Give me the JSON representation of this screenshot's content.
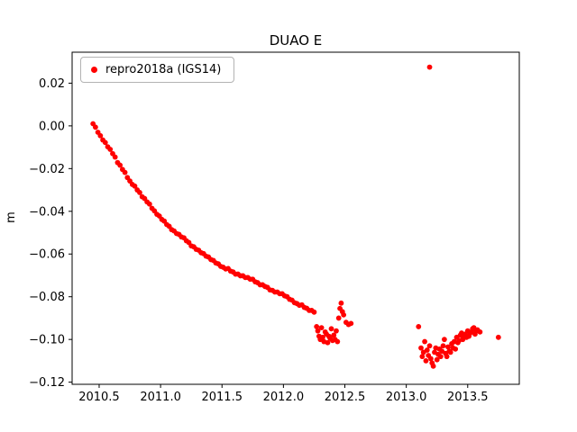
{
  "figure": {
    "title": "DUAO E",
    "ylabel": "m"
  },
  "legend": {
    "label": "repro2018a (IGS14)",
    "marker_color": "#ff0000"
  },
  "chart_data": {
    "type": "scatter",
    "title": "DUAO E",
    "xlabel": "",
    "ylabel": "m",
    "xlim": [
      2010.28,
      2013.92
    ],
    "ylim": [
      -0.121,
      0.0345
    ],
    "grid": false,
    "legend_position": "upper left",
    "xticks": [
      2010.5,
      2011.0,
      2011.5,
      2012.0,
      2012.5,
      2013.0,
      2013.5
    ],
    "xtick_labels": [
      "2010.5",
      "2011.0",
      "2011.5",
      "2012.0",
      "2012.5",
      "2013.0",
      "2013.5"
    ],
    "yticks": [
      0.02,
      0.0,
      -0.02,
      -0.04,
      -0.06,
      -0.08,
      -0.1,
      -0.12
    ],
    "ytick_labels": [
      "0.02",
      "0.00",
      "−0.02",
      "−0.04",
      "−0.06",
      "−0.08",
      "−0.10",
      "−0.12"
    ],
    "series": [
      {
        "name": "repro2018a (IGS14)",
        "color": "#ff0000",
        "marker": "circle",
        "points": [
          [
            2010.45,
            0.001
          ],
          [
            2010.47,
            -0.0006
          ],
          [
            2010.49,
            -0.003
          ],
          [
            2010.51,
            -0.0046
          ],
          [
            2010.53,
            -0.0066
          ],
          [
            2010.55,
            -0.0078
          ],
          [
            2010.57,
            -0.0098
          ],
          [
            2010.59,
            -0.011
          ],
          [
            2010.61,
            -0.013
          ],
          [
            2010.63,
            -0.0146
          ],
          [
            2010.65,
            -0.0172
          ],
          [
            2010.67,
            -0.0184
          ],
          [
            2010.69,
            -0.0204
          ],
          [
            2010.71,
            -0.0218
          ],
          [
            2010.73,
            -0.0242
          ],
          [
            2010.75,
            -0.0258
          ],
          [
            2010.77,
            -0.0274
          ],
          [
            2010.79,
            -0.0282
          ],
          [
            2010.81,
            -0.03
          ],
          [
            2010.83,
            -0.0312
          ],
          [
            2010.85,
            -0.0332
          ],
          [
            2010.87,
            -0.034
          ],
          [
            2010.89,
            -0.0356
          ],
          [
            2010.91,
            -0.0366
          ],
          [
            2010.93,
            -0.0386
          ],
          [
            2010.95,
            -0.0398
          ],
          [
            2010.97,
            -0.0414
          ],
          [
            2010.99,
            -0.0422
          ],
          [
            2011.01,
            -0.0438
          ],
          [
            2011.03,
            -0.0446
          ],
          [
            2011.05,
            -0.0462
          ],
          [
            2011.07,
            -0.047
          ],
          [
            2011.09,
            -0.0486
          ],
          [
            2011.11,
            -0.0492
          ],
          [
            2011.13,
            -0.0504
          ],
          [
            2011.15,
            -0.0508
          ],
          [
            2011.17,
            -0.052
          ],
          [
            2011.19,
            -0.0524
          ],
          [
            2011.21,
            -0.0538
          ],
          [
            2011.23,
            -0.0546
          ],
          [
            2011.25,
            -0.0562
          ],
          [
            2011.27,
            -0.0566
          ],
          [
            2011.29,
            -0.0578
          ],
          [
            2011.31,
            -0.0582
          ],
          [
            2011.33,
            -0.0594
          ],
          [
            2011.35,
            -0.0598
          ],
          [
            2011.37,
            -0.061
          ],
          [
            2011.39,
            -0.0614
          ],
          [
            2011.41,
            -0.0626
          ],
          [
            2011.43,
            -0.063
          ],
          [
            2011.45,
            -0.0642
          ],
          [
            2011.47,
            -0.0646
          ],
          [
            2011.49,
            -0.0658
          ],
          [
            2011.51,
            -0.0662
          ],
          [
            2011.53,
            -0.067
          ],
          [
            2011.55,
            -0.0668
          ],
          [
            2011.57,
            -0.068
          ],
          [
            2011.59,
            -0.0684
          ],
          [
            2011.61,
            -0.0694
          ],
          [
            2011.63,
            -0.0694
          ],
          [
            2011.65,
            -0.0702
          ],
          [
            2011.67,
            -0.0702
          ],
          [
            2011.69,
            -0.071
          ],
          [
            2011.71,
            -0.071
          ],
          [
            2011.73,
            -0.0718
          ],
          [
            2011.75,
            -0.0718
          ],
          [
            2011.77,
            -0.073
          ],
          [
            2011.79,
            -0.0734
          ],
          [
            2011.81,
            -0.0744
          ],
          [
            2011.83,
            -0.0744
          ],
          [
            2011.85,
            -0.0752
          ],
          [
            2011.87,
            -0.0756
          ],
          [
            2011.89,
            -0.0768
          ],
          [
            2011.91,
            -0.077
          ],
          [
            2011.93,
            -0.0778
          ],
          [
            2011.95,
            -0.0778
          ],
          [
            2011.97,
            -0.0786
          ],
          [
            2011.99,
            -0.0786
          ],
          [
            2012.01,
            -0.0796
          ],
          [
            2012.03,
            -0.08
          ],
          [
            2012.05,
            -0.0812
          ],
          [
            2012.07,
            -0.0816
          ],
          [
            2012.09,
            -0.0828
          ],
          [
            2012.11,
            -0.0832
          ],
          [
            2012.13,
            -0.084
          ],
          [
            2012.15,
            -0.0838
          ],
          [
            2012.17,
            -0.085
          ],
          [
            2012.19,
            -0.0854
          ],
          [
            2012.21,
            -0.0864
          ],
          [
            2012.23,
            -0.0864
          ],
          [
            2012.25,
            -0.0872
          ],
          [
            2012.27,
            -0.094
          ],
          [
            2012.28,
            -0.096
          ],
          [
            2012.29,
            -0.0985
          ],
          [
            2012.3,
            -0.1
          ],
          [
            2012.31,
            -0.0945
          ],
          [
            2012.32,
            -0.099
          ],
          [
            2012.33,
            -0.101
          ],
          [
            2012.34,
            -0.0965
          ],
          [
            2012.35,
            -0.0975
          ],
          [
            2012.36,
            -0.1015
          ],
          [
            2012.37,
            -0.0985
          ],
          [
            2012.38,
            -0.0995
          ],
          [
            2012.39,
            -0.095
          ],
          [
            2012.4,
            -0.1005
          ],
          [
            2012.41,
            -0.098
          ],
          [
            2012.42,
            -0.1
          ],
          [
            2012.43,
            -0.096
          ],
          [
            2012.44,
            -0.101
          ],
          [
            2012.45,
            -0.09
          ],
          [
            2012.46,
            -0.0855
          ],
          [
            2012.47,
            -0.083
          ],
          [
            2012.48,
            -0.087
          ],
          [
            2012.49,
            -0.0885
          ],
          [
            2012.51,
            -0.092
          ],
          [
            2012.53,
            -0.093
          ],
          [
            2012.55,
            -0.0925
          ],
          [
            2013.1,
            -0.094
          ],
          [
            2013.12,
            -0.104
          ],
          [
            2013.13,
            -0.108
          ],
          [
            2013.14,
            -0.106
          ],
          [
            2013.15,
            -0.101
          ],
          [
            2013.16,
            -0.11
          ],
          [
            2013.17,
            -0.105
          ],
          [
            2013.18,
            -0.1075
          ],
          [
            2013.19,
            0.0275
          ],
          [
            2013.19,
            -0.103
          ],
          [
            2013.2,
            -0.109
          ],
          [
            2013.21,
            -0.111
          ],
          [
            2013.22,
            -0.1125
          ],
          [
            2013.23,
            -0.106
          ],
          [
            2013.24,
            -0.104
          ],
          [
            2013.25,
            -0.1095
          ],
          [
            2013.26,
            -0.107
          ],
          [
            2013.27,
            -0.1045
          ],
          [
            2013.28,
            -0.108
          ],
          [
            2013.29,
            -0.1055
          ],
          [
            2013.3,
            -0.103
          ],
          [
            2013.31,
            -0.1
          ],
          [
            2013.32,
            -0.1065
          ],
          [
            2013.33,
            -0.108
          ],
          [
            2013.34,
            -0.1035
          ],
          [
            2013.35,
            -0.1055
          ],
          [
            2013.36,
            -0.106
          ],
          [
            2013.37,
            -0.102
          ],
          [
            2013.38,
            -0.104
          ],
          [
            2013.39,
            -0.101
          ],
          [
            2013.4,
            -0.1045
          ],
          [
            2013.41,
            -0.099
          ],
          [
            2013.42,
            -0.1015
          ],
          [
            2013.43,
            -0.1005
          ],
          [
            2013.44,
            -0.098
          ],
          [
            2013.45,
            -0.097
          ],
          [
            2013.46,
            -0.1
          ],
          [
            2013.47,
            -0.0985
          ],
          [
            2013.48,
            -0.0975
          ],
          [
            2013.49,
            -0.099
          ],
          [
            2013.5,
            -0.096
          ],
          [
            2013.51,
            -0.0985
          ],
          [
            2013.52,
            -0.097
          ],
          [
            2013.53,
            -0.0965
          ],
          [
            2013.54,
            -0.095
          ],
          [
            2013.55,
            -0.0945
          ],
          [
            2013.56,
            -0.0975
          ],
          [
            2013.57,
            -0.096
          ],
          [
            2013.58,
            -0.0955
          ],
          [
            2013.6,
            -0.0965
          ],
          [
            2013.75,
            -0.099
          ]
        ]
      }
    ]
  }
}
